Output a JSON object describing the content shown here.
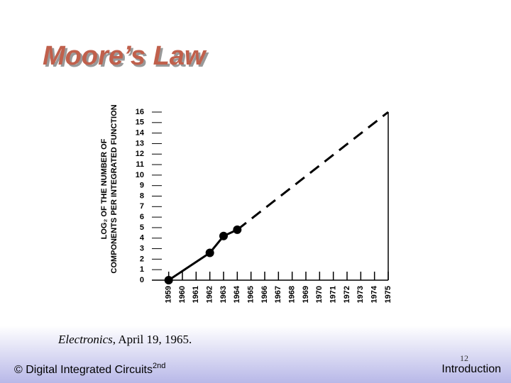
{
  "slide": {
    "title": "Moore’s Law",
    "caption_source": "Electronics",
    "caption_rest": ", April 19, 1965.",
    "footer_left": "© Digital Integrated Circuits",
    "footer_sup": "2nd",
    "page_number": "12",
    "footer_right": "Introduction"
  },
  "chart_data": {
    "type": "line",
    "ylabel_lines": [
      "LOG₂ OF THE NUMBER OF",
      "COMPONENTS PER INTEGRATED FUNCTION"
    ],
    "xlim": [
      1958.5,
      1975
    ],
    "xticks": [
      1959,
      1960,
      1961,
      1962,
      1963,
      1964,
      1965,
      1966,
      1967,
      1968,
      1969,
      1970,
      1971,
      1972,
      1973,
      1974,
      1975
    ],
    "ylim": [
      0,
      16
    ],
    "yticks": [
      0,
      1,
      2,
      3,
      4,
      5,
      6,
      7,
      8,
      9,
      10,
      11,
      12,
      13,
      14,
      15,
      16
    ],
    "series": [
      {
        "color": "#000000",
        "dashed": false,
        "markers": true,
        "x": [
          1959,
          1962,
          1963,
          1964
        ],
        "values": [
          0,
          2.6,
          4.2,
          4.8
        ]
      },
      {
        "color": "#000000",
        "dashed": true,
        "markers": false,
        "x": [
          1964,
          1975
        ],
        "values": [
          4.8,
          16
        ]
      }
    ]
  }
}
